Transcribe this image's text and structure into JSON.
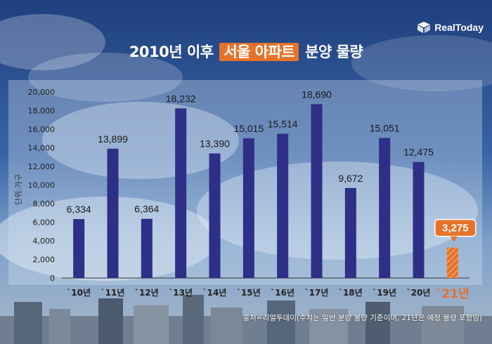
{
  "title": {
    "prefix": "2010년 이후",
    "highlight": "서울 아파트",
    "suffix": "분양 물량"
  },
  "logo": {
    "text": "RealToday",
    "icon": "cube-logo-icon"
  },
  "source_note": "출처=리얼투데이(수치는 일반 분양 물량 기준이며, 21년은 예정 물량 포함임)",
  "colors": {
    "bar": "#2e2f86",
    "highlight": "#e8722a",
    "callout": "#e8722a"
  },
  "chart_data": {
    "type": "bar",
    "title": "2010년 이후 서울 아파트 분양 물량",
    "ylabel": "단위:가구",
    "xlabel": "",
    "ylim": [
      0,
      20000
    ],
    "yticks": [
      "0",
      "2,000",
      "4,000",
      "6,000",
      "8,000",
      "10,000",
      "12,000",
      "14,000",
      "16,000",
      "18,000",
      "20,000"
    ],
    "categories": [
      "`10년",
      "`11년",
      "`12년",
      "`13년",
      "`14년",
      "`15년",
      "`16년",
      "`17년",
      "`18년",
      "`19년",
      "`20년",
      "`21년"
    ],
    "values": [
      6334,
      13899,
      6364,
      18232,
      13390,
      15015,
      15514,
      18690,
      9672,
      15051,
      12475,
      3275
    ],
    "value_labels": [
      "6,334",
      "13,899",
      "6,364",
      "18,232",
      "13,390",
      "15,015",
      "15,514",
      "18,690",
      "9,672",
      "15,051",
      "12,475",
      "3,275"
    ],
    "highlight_index": 11,
    "grid": false
  }
}
